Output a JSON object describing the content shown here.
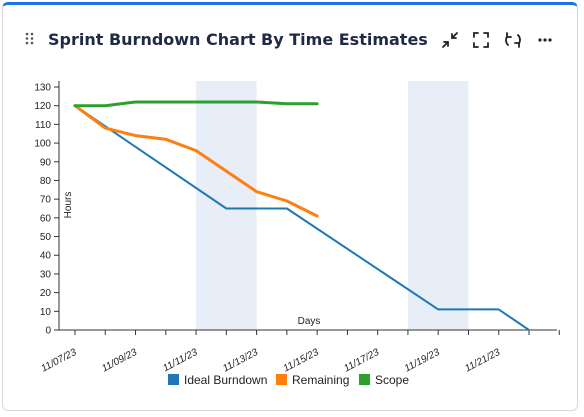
{
  "widget": {
    "title": "Sprint Burndown Chart By Time Estimates",
    "icons": [
      "drag-handle-icon",
      "minimize-icon",
      "fullscreen-icon",
      "refresh-icon",
      "more-icon"
    ]
  },
  "chart_data": {
    "type": "line",
    "title": "",
    "xlabel": "Days",
    "ylabel": "Hours",
    "ylim": [
      0,
      130
    ],
    "yticks": [
      0,
      10,
      20,
      30,
      40,
      50,
      60,
      70,
      80,
      90,
      100,
      110,
      120,
      130
    ],
    "xlim": [
      "11/07/23",
      "11/23/23"
    ],
    "xtick_labels": [
      "11/07/23",
      "11/09/23",
      "11/11/23",
      "11/13/23",
      "11/15/23",
      "11/17/23",
      "11/19/23",
      "11/21/23"
    ],
    "shaded_ranges": [
      [
        "11/11/23",
        "11/13/23"
      ],
      [
        "11/18/23",
        "11/20/23"
      ]
    ],
    "grid": false,
    "legend": "bottom",
    "series": [
      {
        "name": "Ideal Burndown",
        "color": "#1f77b4",
        "points": [
          [
            "11/07/23",
            120
          ],
          [
            "11/12/23",
            65
          ],
          [
            "11/14/23",
            65
          ],
          [
            "11/19/23",
            11
          ],
          [
            "11/21/23",
            11
          ],
          [
            "11/22/23",
            0
          ]
        ]
      },
      {
        "name": "Remaining",
        "color": "#ff7f0e",
        "points": [
          [
            "11/07/23",
            120
          ],
          [
            "11/08/23",
            108
          ],
          [
            "11/09/23",
            104
          ],
          [
            "11/10/23",
            102
          ],
          [
            "11/11/23",
            96
          ],
          [
            "11/12/23",
            85
          ],
          [
            "11/13/23",
            74
          ],
          [
            "11/14/23",
            69
          ],
          [
            "11/15/23",
            61
          ]
        ]
      },
      {
        "name": "Scope",
        "color": "#2ca02c",
        "points": [
          [
            "11/07/23",
            120
          ],
          [
            "11/08/23",
            120
          ],
          [
            "11/09/23",
            122
          ],
          [
            "11/10/23",
            122
          ],
          [
            "11/11/23",
            122
          ],
          [
            "11/12/23",
            122
          ],
          [
            "11/13/23",
            122
          ],
          [
            "11/14/23",
            121
          ],
          [
            "11/15/23",
            121
          ]
        ]
      }
    ]
  }
}
